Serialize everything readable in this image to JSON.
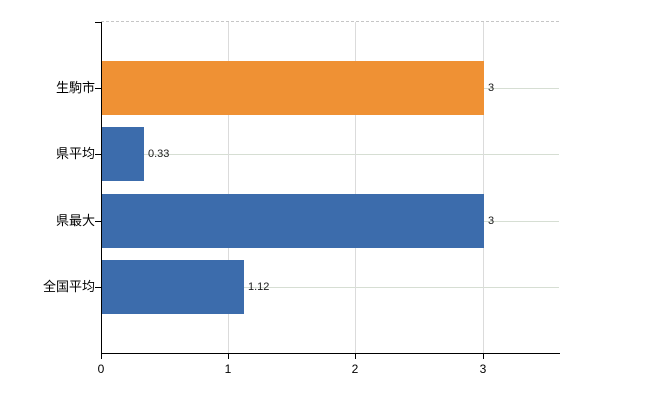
{
  "chart_data": {
    "type": "bar",
    "orientation": "horizontal",
    "title": "",
    "xlabel": "",
    "ylabel": "",
    "categories": [
      "生駒市",
      "県平均",
      "県最大",
      "全国平均"
    ],
    "values": [
      3,
      0.33,
      3,
      1.12
    ],
    "value_labels": [
      "3",
      "0.33",
      "3",
      "1.12"
    ],
    "series": [
      {
        "name": "highlighted-city",
        "color": "#EF9134",
        "rows": [
          0
        ]
      },
      {
        "name": "comparison",
        "color": "#3C6CAC",
        "rows": [
          1,
          2,
          3
        ]
      }
    ],
    "bar_colors": [
      "#EF9134",
      "#3C6CAC",
      "#3C6CAC",
      "#3C6CAC"
    ],
    "xlim": [
      0,
      3.6
    ],
    "x_ticks": [
      0,
      1,
      2,
      3
    ],
    "x_tick_labels": [
      "0",
      "1",
      "2",
      "3"
    ],
    "grid": true,
    "legend": "none"
  },
  "colors": {
    "axis": "#000000",
    "grid_horizontal": "#d6ded3",
    "grid_vertical": "#dbdbdb",
    "top_border": "#c6c6c6",
    "category_text": "#000000",
    "value_text": "#1a1a1a",
    "tick_text": "#000000",
    "background": "#ffffff"
  }
}
